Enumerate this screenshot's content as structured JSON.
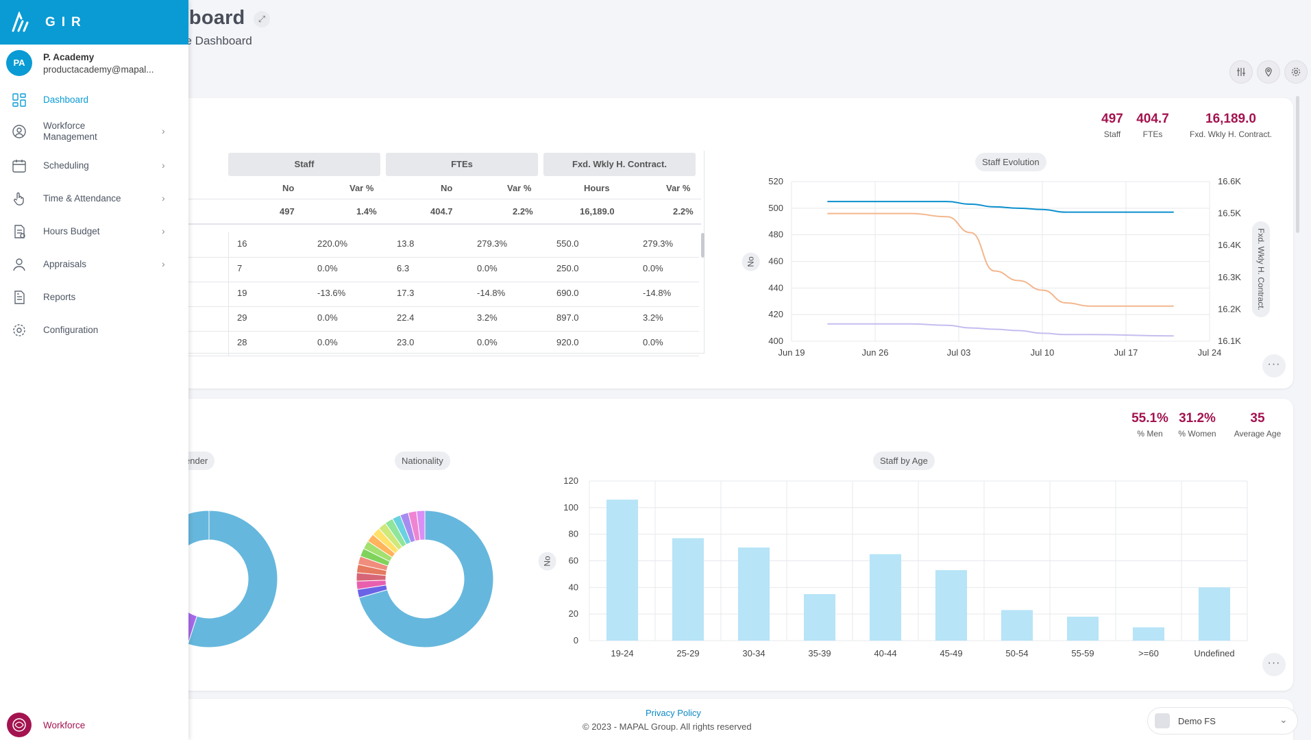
{
  "header": {
    "title": "hboard",
    "subtitle": "ce Dashboard"
  },
  "toolbar": {
    "icons": [
      "sliders-icon",
      "location-icon",
      "gear-icon"
    ]
  },
  "sidebar": {
    "brand": "GIR",
    "user": {
      "initials": "PA",
      "name": "P. Academy",
      "email": "productacademy@mapal..."
    },
    "items": [
      {
        "label": "Dashboard",
        "icon": "dashboard-icon",
        "active": true,
        "chevron": false
      },
      {
        "label": "Workforce\nManagement",
        "icon": "user-circle-icon",
        "active": false,
        "chevron": true
      },
      {
        "label": "Scheduling",
        "icon": "calendar-icon",
        "active": false,
        "chevron": true
      },
      {
        "label": "Time & Attendance",
        "icon": "hand-touch-icon",
        "active": false,
        "chevron": true
      },
      {
        "label": "Hours Budget",
        "icon": "budget-doc-icon",
        "active": false,
        "chevron": true
      },
      {
        "label": "Appraisals",
        "icon": "person-icon",
        "active": false,
        "chevron": true
      },
      {
        "label": "Reports",
        "icon": "report-icon",
        "active": false,
        "chevron": false
      },
      {
        "label": "Configuration",
        "icon": "gear-icon",
        "active": false,
        "chevron": false
      }
    ],
    "footer_label": "Workforce"
  },
  "staff_card": {
    "kpis": [
      {
        "value": "497",
        "label": "Staff"
      },
      {
        "value": "404.7",
        "label": "FTEs"
      },
      {
        "value": "16,189.0",
        "label": "Fxd. Wkly H. Contract."
      }
    ],
    "table": {
      "groups": [
        "Staff",
        "FTEs",
        "Fxd. Wkly H. Contract."
      ],
      "subheaders": [
        "No",
        "Var %",
        "No",
        "Var %",
        "Hours",
        "Var %"
      ],
      "total": [
        "497",
        "1.4%",
        "404.7",
        "2.2%",
        "16,189.0",
        "2.2%"
      ],
      "rows": [
        [
          "16",
          "220.0%",
          "13.8",
          "279.3%",
          "550.0",
          "279.3%"
        ],
        [
          "7",
          "0.0%",
          "6.3",
          "0.0%",
          "250.0",
          "0.0%"
        ],
        [
          "19",
          "-13.6%",
          "17.3",
          "-14.8%",
          "690.0",
          "-14.8%"
        ],
        [
          "29",
          "0.0%",
          "22.4",
          "3.2%",
          "897.0",
          "3.2%"
        ],
        [
          "28",
          "0.0%",
          "23.0",
          "0.0%",
          "920.0",
          "0.0%"
        ]
      ]
    }
  },
  "demo_card": {
    "kpis": [
      {
        "value": "55.1%",
        "label": "% Men"
      },
      {
        "value": "31.2%",
        "label": "% Women"
      },
      {
        "value": "35",
        "label": "Average Age"
      }
    ],
    "gender_title": "ender",
    "nationality_title": "Nationality"
  },
  "footer": {
    "privacy": "Privacy Policy",
    "copyright": "© 2023 - MAPAL Group. All rights reserved",
    "selector": "Demo FS"
  },
  "colors": {
    "brand": "#0a9bd4",
    "accent": "#a3134f",
    "bar": "#b7e4f7",
    "line_staff": "#0a8fcd",
    "line_ftes": "#f3b68c",
    "line_hours": "#c5bdf0"
  },
  "chart_data": [
    {
      "type": "line",
      "title": "Staff Evolution",
      "ylabel": "No",
      "y2label": "Fxd. Wkly H. Contract.",
      "x_ticks": [
        "Jun 19",
        "Jun 26",
        "Jul 03",
        "Jul 10",
        "Jul 17",
        "Jul 24"
      ],
      "y_ticks": [
        400,
        420,
        440,
        460,
        480,
        500,
        520
      ],
      "y2_ticks": [
        "16.1K",
        "16.2K",
        "16.3K",
        "16.4K",
        "16.5K",
        "16.6K"
      ],
      "ylim": [
        400,
        520
      ],
      "y2lim": [
        16100,
        16600
      ],
      "x": [
        "Jun 22",
        "Jun 29",
        "Jul 02",
        "Jul 04",
        "Jul 06",
        "Jul 08",
        "Jul 10",
        "Jul 12",
        "Jul 14",
        "Jul 21"
      ],
      "series": [
        {
          "values": [
            505,
            505,
            505,
            503,
            501,
            500,
            499,
            497,
            497,
            497
          ]
        },
        {
          "axis": "y2",
          "values": [
            16500,
            16500,
            16490,
            16440,
            16320,
            16290,
            16260,
            16220,
            16210,
            16210
          ]
        },
        {
          "values": [
            413,
            413,
            412,
            410,
            409,
            408,
            406,
            405,
            405,
            404
          ]
        }
      ]
    },
    {
      "type": "bar",
      "title": "Staff by Age",
      "ylabel": "No",
      "categories": [
        "19-24",
        "25-29",
        "30-34",
        "35-39",
        "40-44",
        "45-49",
        "50-54",
        "55-59",
        ">=60",
        "Undefined"
      ],
      "values": [
        106,
        77,
        70,
        35,
        65,
        53,
        23,
        18,
        10,
        40
      ],
      "ylim": [
        0,
        120
      ],
      "y_ticks": [
        0,
        20,
        40,
        60,
        80,
        100,
        120
      ]
    },
    {
      "type": "pie",
      "title": "Nationality",
      "values": [
        72,
        2,
        2,
        2,
        2,
        2,
        2,
        2,
        2,
        2,
        2,
        2,
        2,
        2,
        2,
        2
      ],
      "colors": [
        "#66b7dd",
        "#6b63e6",
        "#e85fae",
        "#d66677",
        "#e57a60",
        "#f08d7d",
        "#7fd35b",
        "#a2e06f",
        "#ffb35c",
        "#ffe169",
        "#cfe87a",
        "#8ee59b",
        "#6ad1e0",
        "#a78cf0",
        "#ef85d2",
        "#d98ff5"
      ]
    },
    {
      "type": "pie",
      "title": "ender",
      "values": [
        55,
        31,
        14
      ],
      "colors": [
        "#66b7dd",
        "#a769e8",
        "#66b7dd"
      ]
    }
  ]
}
